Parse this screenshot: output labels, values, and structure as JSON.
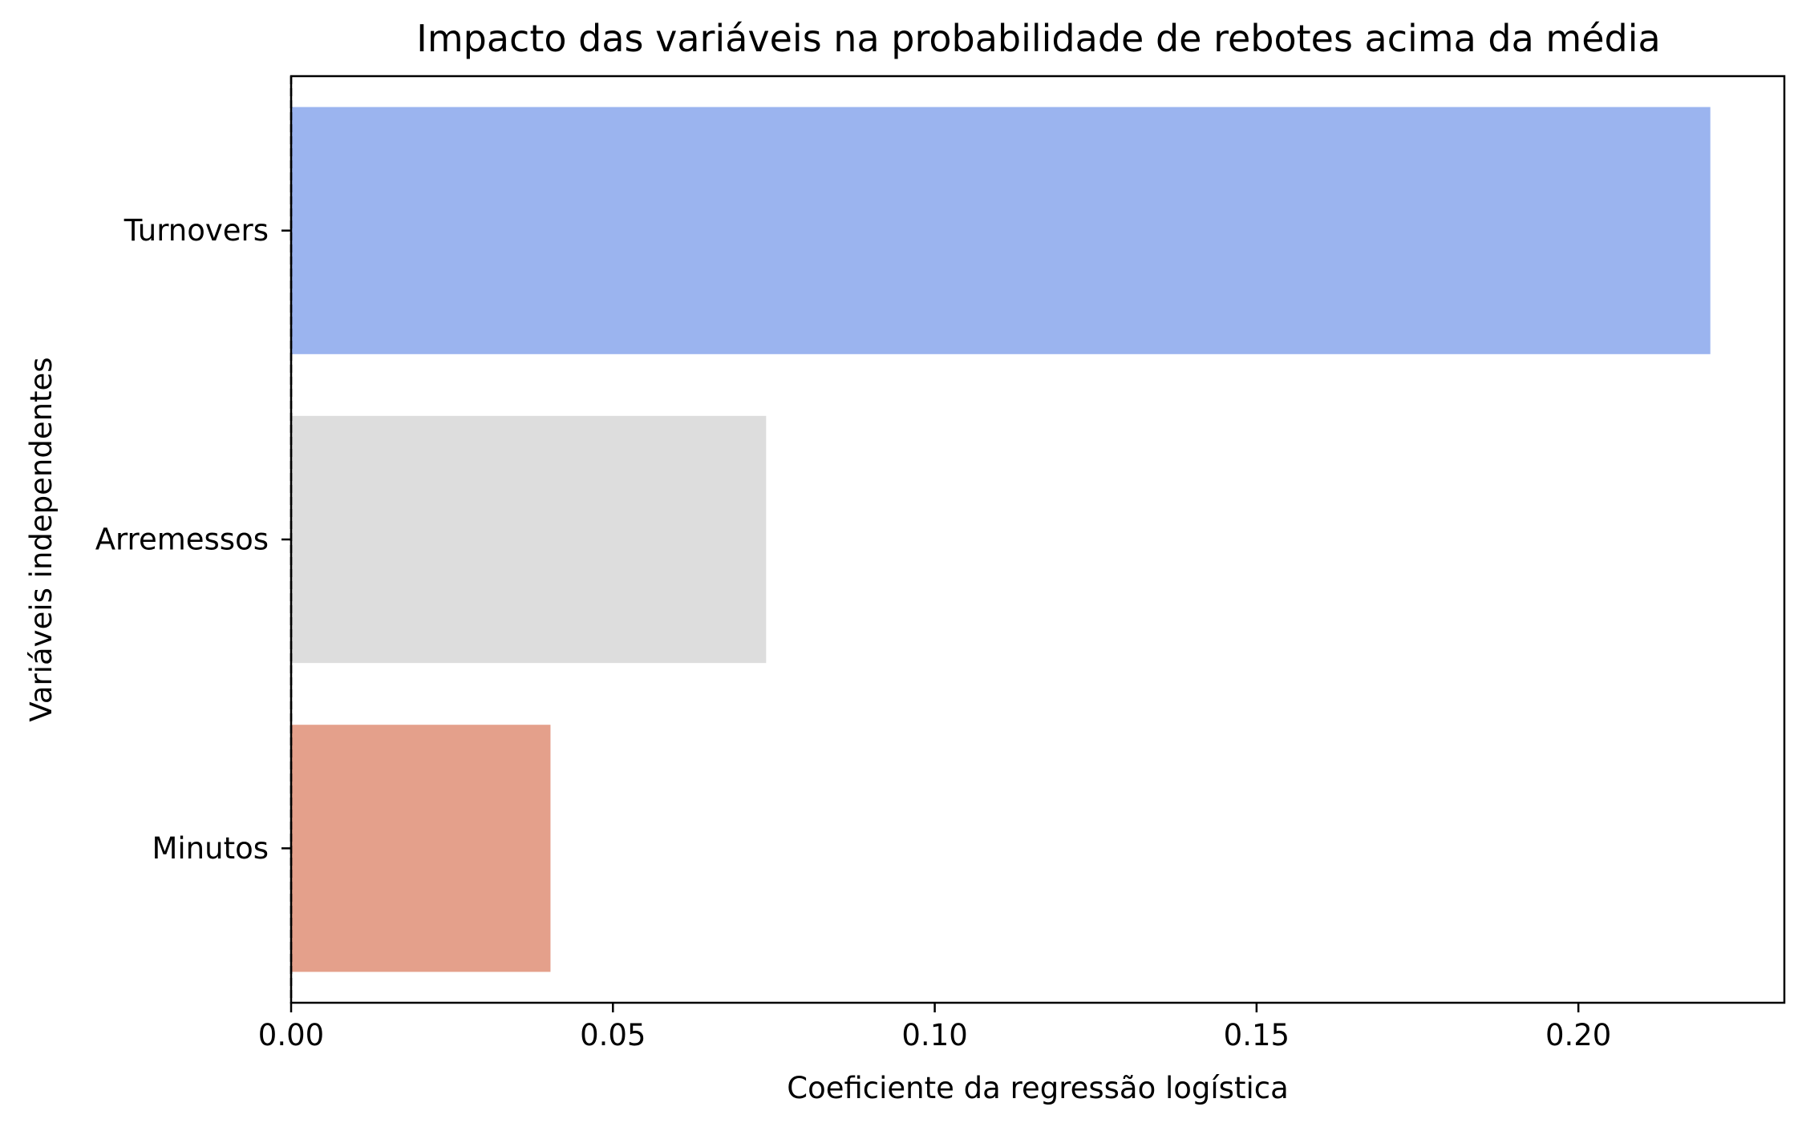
{
  "chart_data": {
    "type": "bar",
    "orientation": "horizontal",
    "title": "Impacto das variáveis na probabilidade de rebotes acima da média",
    "xlabel": "Coeficiente da regressão logística",
    "ylabel": "Variáveis independentes",
    "categories": [
      "Turnovers",
      "Arremessos",
      "Minutos"
    ],
    "values": [
      0.2205,
      0.0738,
      0.0403
    ],
    "colors": [
      "#9bb4ef",
      "#dddddd",
      "#e4a08b"
    ],
    "xlim": [
      0,
      0.232
    ],
    "xticks": [
      0.0,
      0.05,
      0.1,
      0.15,
      0.2
    ],
    "xtick_labels": [
      "0.00",
      "0.05",
      "0.10",
      "0.15",
      "0.20"
    ],
    "grid": false,
    "legend": "none"
  }
}
